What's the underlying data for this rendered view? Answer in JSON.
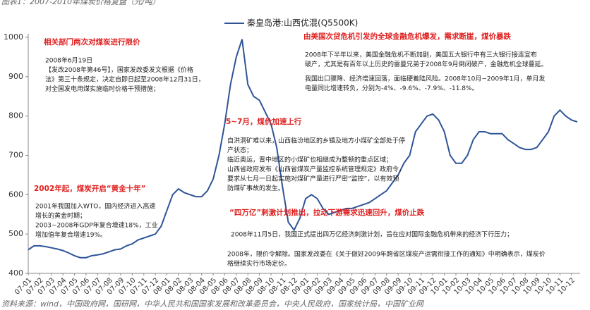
{
  "chart_data": {
    "type": "line",
    "title": "图表1：2007-2010年煤炭价格复盘（元/吨）",
    "source": "资料来源：wind，中国政府网，国研网，中华人民共和国国家发展和改革委员会，中央人民政府，国家统计局，中国矿业网",
    "categories": [
      "07-01",
      null,
      "07-02",
      null,
      "07-03",
      null,
      "07-04",
      null,
      "07-05",
      null,
      "07-06",
      null,
      "07-07",
      null,
      "07-08",
      null,
      "07-09",
      null,
      "07-10",
      null,
      "07-11",
      null,
      "07-12",
      null,
      "08-01",
      null,
      "08-02",
      null,
      "08-03",
      null,
      "08-04",
      null,
      "08-05",
      null,
      "08-06",
      null,
      "08-07",
      null,
      "08-08",
      null,
      "08-09",
      null,
      "08-10",
      null,
      "08-11",
      null,
      "08-12",
      null,
      "09-01",
      null,
      "09-02",
      null,
      "09-03",
      null,
      "09-04",
      null,
      "09-05",
      null,
      "09-06",
      null,
      "09-07",
      null,
      "09-08",
      null,
      "09-09",
      null,
      "09-10",
      null,
      "09-11",
      null,
      "09-12",
      null,
      "10-01",
      null,
      "10-02",
      null,
      "10-03",
      null,
      "10-04",
      null,
      "10-05",
      null,
      "10-06",
      null,
      "10-07",
      null,
      "10-08",
      null,
      "10-09",
      null,
      "10-10",
      null,
      "10-11",
      null,
      "10-12",
      null
    ],
    "series": [
      {
        "name": "秦皇岛港:山西优混(Q5500K)",
        "color": "#2f5597",
        "values": [
          460,
          470,
          470,
          468,
          465,
          462,
          458,
          452,
          445,
          440,
          440,
          445,
          447,
          450,
          455,
          460,
          462,
          470,
          475,
          485,
          490,
          495,
          500,
          520,
          560,
          600,
          615,
          605,
          600,
          595,
          595,
          610,
          640,
          700,
          780,
          880,
          950,
          995,
          880,
          850,
          840,
          810,
          780,
          720,
          620,
          530,
          510,
          540,
          590,
          600,
          590,
          565,
          550,
          555,
          560,
          565,
          565,
          570,
          575,
          580,
          590,
          600,
          610,
          630,
          650,
          680,
          700,
          760,
          780,
          800,
          805,
          790,
          760,
          700,
          680,
          680,
          700,
          740,
          760,
          760,
          755,
          755,
          755,
          740,
          730,
          720,
          715,
          715,
          720,
          740,
          760,
          800,
          815,
          800,
          790,
          785
        ]
      }
    ],
    "ylim": [
      400,
      1000
    ],
    "yticks": [
      400,
      500,
      600,
      700,
      800,
      900,
      1000
    ],
    "annotations": [
      {
        "title": "相关部门两次对煤炭进行限价",
        "lines": [
          "2008年6月19日",
          "【发改2008年第46号】，国家发改委发文根据《价格",
          "法》第三十条规定，决定自即日起至2008年12月31日，",
          "对全国发电用煤实施临时价格干预措施；"
        ]
      },
      {
        "title": "由美国次贷危机引发的全球金融危机爆发，需求断崖，煤价暴跌",
        "lines": [
          "2008年下半年以来，美国金融危机不断加剧，美国五大银行中有三大银行接连宣布",
          "破产，尤其是有百年以上历史的雷曼兄弟于2008年9月倒闭破产，金融危机全球蔓延。"
        ]
      },
      {
        "lines": [
          "我国出口骤降、经济增速回落，面临硬着陆风险。2008年10月~2009年1月，单月发",
          "电量同比增速转负，分别为-4%、-9.6%、-7.9%、-11.8%。"
        ]
      },
      {
        "title": "5~7月，煤价加速上行",
        "lines": [
          "自洪洞矿难以来，山西临汾地区的乡镇及地方小煤矿全部处于停",
          "产状态；",
          "临近奥运，晋中地区的小煤矿也相继成为整顿的重点区域；",
          "山西省政府发布《山西省煤炭产量监控系统管理规定》政府令，",
          "要求从七月一日起实施对煤矿产量进行严密“监控”，以有效预",
          "防煤矿事故的发生。"
        ]
      },
      {
        "title": "2002年起，煤炭开启“黄金十年”",
        "lines": [
          "2001年我国加入WTO，国内经济进入高速",
          "增长的黄金时期；",
          "2003~2008年GDP年复合增速18%，工业",
          "增加值年复合增速19%。"
        ]
      },
      {
        "title": "“四万亿”刺激计划推出，拉动下游需求迅速回升，煤价止跌",
        "lines": [
          "2008年11月5日，我国正式提出四万亿经济刺激计划，旨在应对国际金融危机带来的经济下行压力；"
        ]
      },
      {
        "lines": [
          "2008年，限价令解除。国家发改委在《关于做好2009年跨省区煤炭产运需衔接工作的通知》中明确表示，煤炭价",
          "格继续实行市场定价。"
        ]
      }
    ]
  }
}
